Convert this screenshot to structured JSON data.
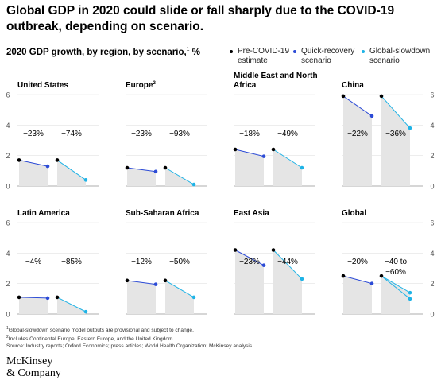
{
  "title": "Global GDP in 2020 could slide or fall sharply due to the COVID-19 outbreak, depending on scenario.",
  "subtitle": "2020 GDP growth, by region, by scenario,",
  "subtitle_sup": "1",
  "subtitle_unit": "%",
  "legend": [
    {
      "label_line1": "Pre-COVID-19",
      "label_line2": "estimate",
      "color": "#000000"
    },
    {
      "label_line1": "Quick-recovery",
      "label_line2": "scenario",
      "color": "#2c4bd6"
    },
    {
      "label_line1": "Global-slowdown",
      "label_line2": "scenario",
      "color": "#1fb3e6"
    }
  ],
  "chart_data": {
    "type": "line",
    "ylim": [
      0,
      6
    ],
    "ytick_labels": [
      "0",
      "2",
      "4",
      "6"
    ],
    "series_names": [
      "Pre-COVID-19 estimate",
      "Quick-recovery scenario",
      "Global-slowdown scenario"
    ],
    "panels": [
      {
        "region": "United States",
        "sup": "",
        "pre": 1.7,
        "quick": 1.3,
        "slow": 0.4,
        "label_quick": "−23%",
        "label_slow": "−74%"
      },
      {
        "region": "Europe",
        "sup": "2",
        "pre": 1.2,
        "quick": 0.95,
        "slow": 0.1,
        "label_quick": "−23%",
        "label_slow": "−93%"
      },
      {
        "region": "Middle East and North Africa",
        "sup": "",
        "pre": 2.4,
        "quick": 1.95,
        "slow": 1.2,
        "label_quick": "−18%",
        "label_slow": "−49%"
      },
      {
        "region": "China",
        "sup": "",
        "pre": 5.9,
        "quick": 4.6,
        "slow": 3.8,
        "label_quick": "−22%",
        "label_slow": "−36%"
      },
      {
        "region": "Latin America",
        "sup": "",
        "pre": 1.1,
        "quick": 1.05,
        "slow": 0.15,
        "label_quick": "−4%",
        "label_slow": "−85%"
      },
      {
        "region": "Sub-Saharan Africa",
        "sup": "",
        "pre": 2.2,
        "quick": 1.95,
        "slow": 1.1,
        "label_quick": "−12%",
        "label_slow": "−50%"
      },
      {
        "region": "East Asia",
        "sup": "",
        "pre": 4.2,
        "quick": 3.2,
        "slow": 2.3,
        "label_quick": "−23%",
        "label_slow": "−44%"
      },
      {
        "region": "Global",
        "sup": "",
        "pre": 2.5,
        "quick": 2.0,
        "slow": 1.0,
        "slow_upper": 1.4,
        "label_quick": "−20%",
        "label_slow": "−40 to −60%"
      }
    ]
  },
  "footnotes": {
    "note1": "Global-slowdown scenario model outputs are provisional and subject to change.",
    "note2": "Includes Continental Europe, Eastern Europe, and the United Kingdom.",
    "source": "Source: Industry reports; Oxford Economics; press articles; World Health Organization; McKinsey analysis"
  },
  "brand": {
    "line1": "McKinsey",
    "line2": "& Company"
  }
}
